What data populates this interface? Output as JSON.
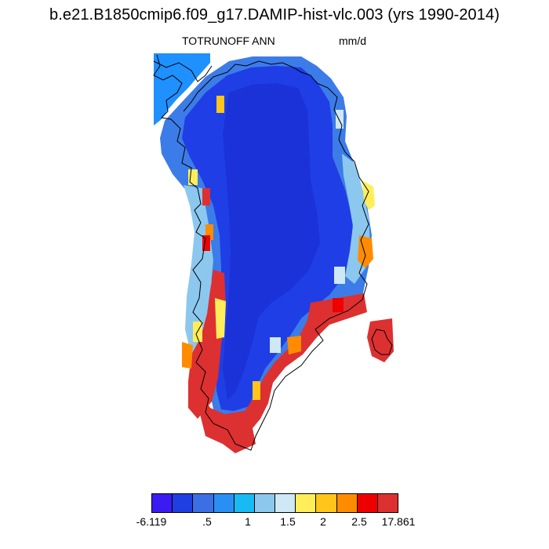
{
  "title": "b.e21.B1850cmip6.f09_g17.DAMIP-hist-vlc.003 (yrs 1990-2014)",
  "variable": "TOTRUNOFF ANN",
  "units": "mm/d",
  "colorbar": {
    "colors": [
      "#3a1cf0",
      "#1f3fe0",
      "#3c6ee6",
      "#2a8ff5",
      "#18baf3",
      "#8cc8ee",
      "#cfe8f5",
      "#ffee5a",
      "#ffc51a",
      "#ff8c00",
      "#ee0000",
      "#dd3030"
    ],
    "labels": [
      "-6.119",
      ".5",
      "1",
      "1.5",
      "2",
      "2.5",
      "17.861"
    ]
  }
}
